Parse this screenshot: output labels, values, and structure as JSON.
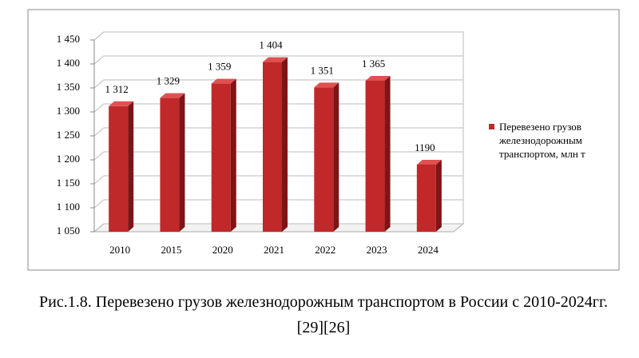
{
  "chart_data": {
    "type": "bar",
    "categories": [
      "2010",
      "2015",
      "2020",
      "2021",
      "2022",
      "2023",
      "2024"
    ],
    "series": [
      {
        "name": "Перевезено грузов железнодорожным транспортом, млн т",
        "color": "#c0282a",
        "values": [
          1312,
          1329,
          1359,
          1404,
          1351,
          1365,
          1190
        ],
        "value_labels": [
          "1 312",
          "1 329",
          "1 359",
          "1 404",
          "1 351",
          "1 365",
          "1190"
        ]
      }
    ],
    "ylim": [
      1050,
      1450
    ],
    "yticks": [
      {
        "value": 1050,
        "label": "1 050"
      },
      {
        "value": 1100,
        "label": "1 100"
      },
      {
        "value": 1150,
        "label": "1 150"
      },
      {
        "value": 1200,
        "label": "1 200"
      },
      {
        "value": 1250,
        "label": "1 250"
      },
      {
        "value": 1300,
        "label": "1 300"
      },
      {
        "value": 1350,
        "label": "1 350"
      },
      {
        "value": 1400,
        "label": "1 400"
      },
      {
        "value": 1450,
        "label": "1 450"
      }
    ],
    "grid": true,
    "legend": "right",
    "caption": "Рис.1.8. Перевезено грузов железнодорожным транспортом в России с 2010-2024гг. [29][26]"
  }
}
